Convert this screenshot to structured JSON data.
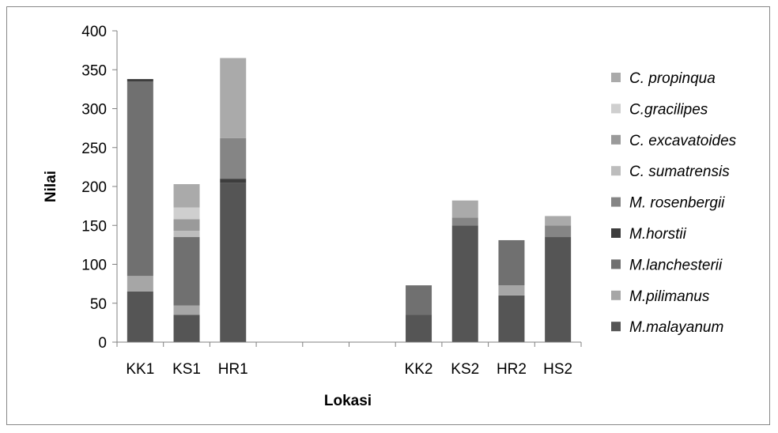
{
  "chart_data": {
    "type": "bar",
    "stacked": true,
    "xlabel": "Lokasi",
    "ylabel": "Nilai",
    "ylim": [
      0,
      400
    ],
    "yticks": [
      0,
      50,
      100,
      150,
      200,
      250,
      300,
      350,
      400
    ],
    "grid": false,
    "legend_position": "right",
    "categories": [
      "KK1",
      "KS1",
      "HR1",
      "",
      "",
      "",
      "KK2",
      "KS2",
      "HR2",
      "HS2"
    ],
    "series": [
      {
        "name": "M.malayanum",
        "color": "#555555",
        "values": [
          65,
          35,
          205,
          0,
          0,
          0,
          35,
          150,
          60,
          135
        ]
      },
      {
        "name": "M.pilimanus",
        "color": "#a6a6a6",
        "values": [
          20,
          12,
          0,
          0,
          0,
          0,
          0,
          0,
          13,
          0
        ]
      },
      {
        "name": "M.lanchesterii",
        "color": "#707070",
        "values": [
          250,
          88,
          0,
          0,
          0,
          0,
          38,
          0,
          58,
          0
        ]
      },
      {
        "name": "M.horstii",
        "color": "#3d3d3d",
        "values": [
          3,
          0,
          5,
          0,
          0,
          0,
          0,
          0,
          0,
          0
        ]
      },
      {
        "name": "M. rosenbergii",
        "color": "#858585",
        "values": [
          0,
          0,
          52,
          0,
          0,
          0,
          0,
          10,
          0,
          15
        ]
      },
      {
        "name": "C. sumatrensis",
        "color": "#bdbdbd",
        "values": [
          0,
          8,
          0,
          0,
          0,
          0,
          0,
          0,
          0,
          0
        ]
      },
      {
        "name": "C. excavatoides",
        "color": "#9a9a9a",
        "values": [
          0,
          15,
          0,
          0,
          0,
          0,
          0,
          0,
          0,
          0
        ]
      },
      {
        "name": "C.gracilipes",
        "color": "#cfcfcf",
        "values": [
          0,
          15,
          0,
          0,
          0,
          0,
          0,
          0,
          0,
          0
        ]
      },
      {
        "name": "C. propinqua",
        "color": "#aaaaaa",
        "values": [
          0,
          30,
          103,
          0,
          0,
          0,
          0,
          22,
          0,
          12
        ]
      }
    ]
  }
}
